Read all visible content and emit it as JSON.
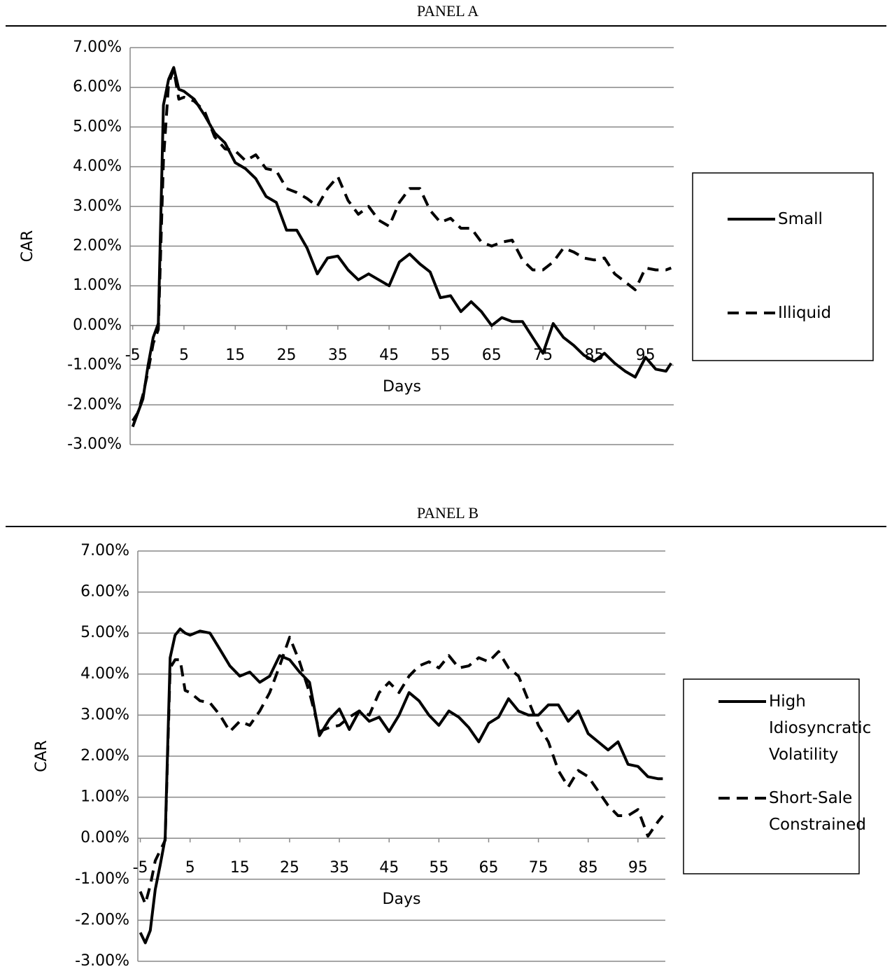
{
  "chart_data": [
    {
      "type": "line",
      "title": "PANEL A",
      "x_label": "Days",
      "y_label": "CAR",
      "grid": true,
      "legend": "right",
      "x": [
        -5,
        -4,
        -3,
        -2,
        -1,
        0,
        1,
        2,
        3,
        4,
        5,
        7,
        9,
        11,
        13,
        15,
        17,
        19,
        21,
        23,
        25,
        27,
        29,
        31,
        33,
        35,
        37,
        39,
        41,
        43,
        45,
        47,
        49,
        51,
        53,
        55,
        57,
        59,
        61,
        63,
        65,
        67,
        69,
        71,
        73,
        75,
        77,
        79,
        81,
        83,
        85,
        87,
        89,
        91,
        93,
        95,
        97,
        99,
        100
      ],
      "xlim": [
        -5.5,
        100.5
      ],
      "xticks": [
        -5,
        5,
        15,
        25,
        35,
        45,
        55,
        65,
        75,
        85,
        95
      ],
      "ylim": [
        -3,
        7
      ],
      "yticks": [
        {
          "value": -3,
          "label": "-3.00%"
        },
        {
          "value": -2,
          "label": "-2.00%"
        },
        {
          "value": -1,
          "label": "-1.00%"
        },
        {
          "value": 0,
          "label": "0.00%"
        },
        {
          "value": 1,
          "label": "1.00%"
        },
        {
          "value": 2,
          "label": "2.00%"
        },
        {
          "value": 3,
          "label": "3.00%"
        },
        {
          "value": 4,
          "label": "4.00%"
        },
        {
          "value": 5,
          "label": "5.00%"
        },
        {
          "value": 6,
          "label": "6.00%"
        },
        {
          "value": 7,
          "label": "7.00%"
        }
      ],
      "series": [
        {
          "name": "Small",
          "color": "#000000",
          "dash": "solid",
          "values": [
            -2.55,
            -2.2,
            -1.85,
            -1.0,
            -0.3,
            0.05,
            5.55,
            6.2,
            6.5,
            5.95,
            5.9,
            5.7,
            5.3,
            4.85,
            4.6,
            4.1,
            3.95,
            3.7,
            3.25,
            3.1,
            2.4,
            2.4,
            1.95,
            1.3,
            1.7,
            1.75,
            1.4,
            1.15,
            1.3,
            1.15,
            1.0,
            1.6,
            1.8,
            1.55,
            1.35,
            0.7,
            0.75,
            0.35,
            0.6,
            0.35,
            0.0,
            0.2,
            0.1,
            0.1,
            -0.3,
            -0.7,
            0.05,
            -0.3,
            -0.5,
            -0.75,
            -0.9,
            -0.7,
            -0.95,
            -1.15,
            -1.3,
            -0.8,
            -1.1,
            -1.15,
            -0.95
          ]
        },
        {
          "name": "Illiquid",
          "color": "#000000",
          "dash": "dashed",
          "values": [
            -2.4,
            -2.2,
            -1.75,
            -1.15,
            -0.45,
            -0.1,
            4.15,
            6.1,
            6.45,
            5.7,
            5.75,
            5.65,
            5.4,
            4.75,
            4.45,
            4.4,
            4.15,
            4.3,
            3.95,
            3.9,
            3.45,
            3.35,
            3.2,
            3.0,
            3.45,
            3.75,
            3.15,
            2.8,
            3.0,
            2.65,
            2.5,
            3.1,
            3.45,
            3.45,
            2.9,
            2.6,
            2.7,
            2.45,
            2.45,
            2.1,
            2.0,
            2.1,
            2.15,
            1.65,
            1.4,
            1.4,
            1.6,
            1.95,
            1.85,
            1.7,
            1.65,
            1.7,
            1.3,
            1.1,
            0.9,
            1.45,
            1.4,
            1.4,
            1.45
          ]
        }
      ]
    },
    {
      "type": "line",
      "title": "PANEL B",
      "x_label": "Days",
      "y_label": "CAR",
      "grid": true,
      "legend": "right",
      "x": [
        -5,
        -4,
        -3,
        -2,
        -1,
        0,
        1,
        2,
        3,
        4,
        5,
        7,
        9,
        11,
        13,
        15,
        17,
        19,
        21,
        23,
        25,
        27,
        29,
        31,
        33,
        35,
        37,
        39,
        41,
        43,
        45,
        47,
        49,
        51,
        53,
        55,
        57,
        59,
        61,
        63,
        65,
        67,
        69,
        71,
        73,
        75,
        77,
        79,
        81,
        83,
        85,
        87,
        89,
        91,
        93,
        95,
        97,
        99,
        100
      ],
      "xlim": [
        -5.5,
        100.5
      ],
      "xticks": [
        -5,
        5,
        15,
        25,
        35,
        45,
        55,
        65,
        75,
        85,
        95
      ],
      "ylim": [
        -3,
        7
      ],
      "yticks": [
        {
          "value": -3,
          "label": "-3.00%"
        },
        {
          "value": -2,
          "label": "-2.00%"
        },
        {
          "value": -1,
          "label": "-1.00%"
        },
        {
          "value": 0,
          "label": "0.00%"
        },
        {
          "value": 1,
          "label": "1.00%"
        },
        {
          "value": 2,
          "label": "2.00%"
        },
        {
          "value": 3,
          "label": "3.00%"
        },
        {
          "value": 4,
          "label": "4.00%"
        },
        {
          "value": 5,
          "label": "5.00%"
        },
        {
          "value": 6,
          "label": "6.00%"
        },
        {
          "value": 7,
          "label": "7.00%"
        }
      ],
      "series": [
        {
          "name": "High Idiosyncratic Volatility",
          "color": "#000000",
          "dash": "solid",
          "values": [
            -2.3,
            -2.55,
            -2.25,
            -1.25,
            -0.65,
            0.0,
            4.4,
            4.95,
            5.1,
            5.0,
            4.95,
            5.05,
            5.0,
            4.6,
            4.2,
            3.95,
            4.05,
            3.8,
            3.95,
            4.45,
            4.35,
            4.05,
            3.8,
            2.5,
            2.9,
            3.15,
            2.65,
            3.1,
            2.85,
            2.95,
            2.6,
            3.0,
            3.55,
            3.35,
            3.0,
            2.75,
            3.1,
            2.95,
            2.7,
            2.35,
            2.8,
            2.95,
            3.4,
            3.1,
            3.0,
            3.0,
            3.25,
            3.25,
            2.85,
            3.1,
            2.55,
            2.35,
            2.15,
            2.35,
            1.8,
            1.75,
            1.5,
            1.45,
            1.45
          ]
        },
        {
          "name": "Short-Sale Constrained",
          "color": "#000000",
          "dash": "dashed",
          "values": [
            -1.3,
            -1.6,
            -1.15,
            -0.55,
            -0.3,
            -0.05,
            4.15,
            4.35,
            4.35,
            3.6,
            3.55,
            3.35,
            3.3,
            3.0,
            2.6,
            2.85,
            2.75,
            3.1,
            3.55,
            4.2,
            4.9,
            4.3,
            3.55,
            2.6,
            2.7,
            2.75,
            2.95,
            3.1,
            3.0,
            3.55,
            3.8,
            3.55,
            3.95,
            4.2,
            4.3,
            4.15,
            4.45,
            4.15,
            4.2,
            4.4,
            4.3,
            4.55,
            4.15,
            3.95,
            3.35,
            2.75,
            2.35,
            1.65,
            1.25,
            1.65,
            1.5,
            1.15,
            0.8,
            0.55,
            0.55,
            0.7,
            0.05,
            0.4,
            0.55
          ]
        }
      ]
    }
  ]
}
